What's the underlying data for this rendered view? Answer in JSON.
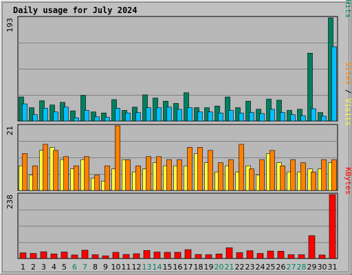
{
  "chart_data": {
    "title": "Daily usage for July 2024",
    "categories": [
      "1",
      "2",
      "3",
      "4",
      "5",
      "6",
      "7",
      "8",
      "9",
      "10",
      "11",
      "12",
      "13",
      "14",
      "15",
      "16",
      "17",
      "18",
      "19",
      "20",
      "21",
      "22",
      "23",
      "24",
      "25",
      "26",
      "27",
      "28",
      "29",
      "30",
      "31"
    ],
    "weekend_days": [
      "6",
      "7",
      "13",
      "14",
      "20",
      "21",
      "27",
      "28"
    ],
    "colors": {
      "background": "#C0C0C0",
      "plot_bg": "#B8B8B8",
      "title": "#0000CC",
      "hits": "#008060",
      "files": "#00C0FF",
      "pages": "#00E0FF",
      "visits": "#FFFF40",
      "sites": "#FF8000",
      "kbytes": "#FF0000",
      "weekend": "#008060",
      "weekday": "#000000"
    },
    "panels": [
      {
        "type": "bar",
        "ymax": 193,
        "ytick_label": "193",
        "side_labels": [
          {
            "text": "Pages",
            "color": "#00C0FF"
          },
          {
            "text": " / ",
            "color": "#000000"
          },
          {
            "text": "Files",
            "color": "#0060FF"
          },
          {
            "text": " / ",
            "color": "#000000"
          },
          {
            "text": "Hits",
            "color": "#008060"
          }
        ],
        "series": [
          {
            "name": "Hits",
            "color": "#008060",
            "values": [
              45,
              25,
              38,
              30,
              35,
              19,
              48,
              17,
              15,
              40,
              20,
              26,
              49,
              43,
              37,
              33,
              53,
              25,
              25,
              28,
              45,
              25,
              37,
              22,
              41,
              39,
              20,
              22,
              127,
              16,
              193
            ]
          },
          {
            "name": "Files",
            "color": "#00C0FF",
            "values": [
              32,
              12,
              24,
              17,
              26,
              6,
              20,
              8,
              7,
              24,
              15,
              16,
              25,
              25,
              26,
              22,
              25,
              17,
              17,
              15,
              20,
              15,
              16,
              14,
              22,
              16,
              12,
              10,
              23,
              9,
              139
            ]
          }
        ]
      },
      {
        "type": "bar",
        "ymax": 21,
        "ytick_label": "21",
        "side_labels": [
          {
            "text": "Sites",
            "color": "#FF8000"
          },
          {
            "text": " / ",
            "color": "#000000"
          },
          {
            "text": "Visits",
            "color": "#FFFF40"
          }
        ],
        "series": [
          {
            "name": "Visits",
            "color": "#FFFF40",
            "values": [
              8,
              5,
              13,
              14,
              10,
              7,
              10,
              4,
              3,
              7,
              10,
              6,
              7,
              9,
              8,
              8,
              8,
              12,
              9,
              6,
              8,
              6,
              8,
              5,
              12,
              9,
              6,
              6,
              7,
              7,
              9
            ]
          },
          {
            "name": "Sites",
            "color": "#FF8000",
            "values": [
              12,
              8,
              15,
              13,
              11,
              8,
              11,
              5,
              8,
              21,
              10,
              8,
              11,
              11,
              10,
              10,
              14,
              14,
              13,
              9,
              10,
              15,
              7,
              10,
              13,
              8,
              10,
              9,
              6,
              10,
              10
            ]
          }
        ]
      },
      {
        "type": "bar",
        "ymax": 238,
        "ytick_label": "238",
        "side_labels": [
          {
            "text": "KBytes",
            "color": "#FF0000"
          }
        ],
        "series": [
          {
            "name": "KBytes",
            "color": "#FF0000",
            "values": [
              21,
              19,
              25,
              17,
              24,
              13,
              31,
              14,
              10,
              23,
              15,
              18,
              30,
              24,
              23,
              23,
              33,
              15,
              14,
              17,
              40,
              22,
              29,
              19,
              28,
              27,
              14,
              14,
              85,
              13,
              238
            ]
          }
        ]
      }
    ]
  }
}
